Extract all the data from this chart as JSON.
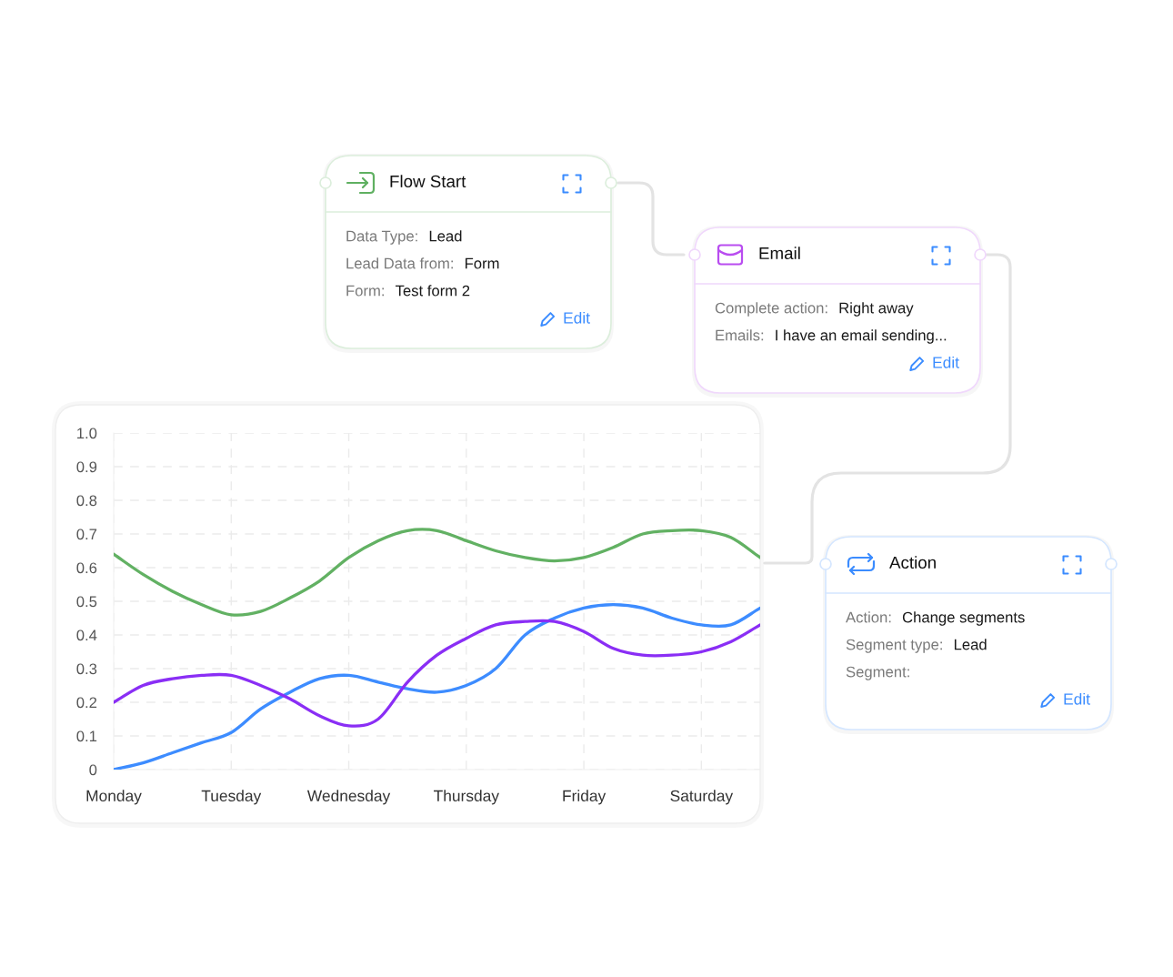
{
  "chart_data": [
    {
      "type": "other",
      "title": "Flow Start",
      "color": "#5fb061",
      "annotations": [
        "Data Type:",
        "Lead",
        "Lead Data from:",
        "Form",
        "Form:",
        "Test form 2",
        "Edit"
      ]
    },
    {
      "type": "other",
      "title": "Email",
      "color": "#b94df0",
      "annotations": [
        "Complete action:",
        "Right away",
        "Emails:",
        "I have an email sending...",
        "Edit"
      ]
    },
    {
      "type": "line",
      "categories": [
        "Monday",
        null,
        null,
        null,
        "Tuesday",
        null,
        null,
        null,
        "Wednesday",
        null,
        null,
        null,
        "Thursday",
        null,
        null,
        null,
        "Friday",
        null,
        null,
        null,
        "Saturday",
        null,
        null
      ],
      "ylim": [
        0,
        1
      ],
      "yticks": [
        0,
        0.1,
        0.2,
        0.3,
        0.4,
        0.5,
        0.6,
        0.7,
        0.8,
        0.9,
        {
          "value": 1,
          "label": "1.0"
        }
      ],
      "grid": true,
      "series": [
        {
          "color": "#62b163",
          "values": [
            0.64,
            0.58,
            0.53,
            0.49,
            0.46,
            0.47,
            0.51,
            0.56,
            0.63,
            0.68,
            0.71,
            0.71,
            0.68,
            0.65,
            0.63,
            0.62,
            0.63,
            0.66,
            0.7,
            0.71,
            0.71,
            0.69,
            0.63
          ]
        },
        {
          "color": "#3d8cff",
          "values": [
            0,
            0.02,
            0.05,
            0.08,
            0.11,
            0.18,
            0.23,
            0.27,
            0.28,
            0.26,
            0.24,
            0.23,
            0.25,
            0.3,
            0.4,
            0.45,
            0.48,
            0.49,
            0.48,
            0.45,
            0.43,
            0.43,
            0.48
          ]
        },
        {
          "color": "#8a2ef5",
          "values": [
            0.2,
            0.25,
            0.27,
            0.28,
            0.28,
            0.25,
            0.21,
            0.16,
            0.13,
            0.15,
            0.26,
            0.34,
            0.39,
            0.43,
            0.44,
            0.44,
            0.41,
            0.36,
            0.34,
            0.34,
            0.35,
            0.38,
            0.43
          ]
        }
      ]
    },
    {
      "type": "other",
      "title": "Action",
      "color": "#3b8cff",
      "annotations": [
        "Action:",
        "Change segments",
        "Segment type:",
        "Lead",
        "Segment:",
        "Edit"
      ]
    }
  ]
}
